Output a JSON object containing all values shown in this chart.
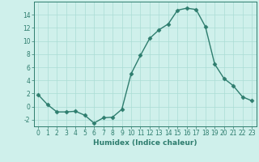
{
  "x": [
    0,
    1,
    2,
    3,
    4,
    5,
    6,
    7,
    8,
    9,
    10,
    11,
    12,
    13,
    14,
    15,
    16,
    17,
    18,
    19,
    20,
    21,
    22,
    23
  ],
  "y": [
    1.8,
    0.3,
    -0.8,
    -0.8,
    -0.7,
    -1.3,
    -2.5,
    -1.7,
    -1.6,
    -0.4,
    5.0,
    7.8,
    10.4,
    11.7,
    12.6,
    14.7,
    15.0,
    14.8,
    12.2,
    6.5,
    4.3,
    3.2,
    1.5,
    0.9
  ],
  "line_color": "#2e7d6e",
  "marker": "D",
  "markersize": 2.5,
  "linewidth": 1.0,
  "bg_color": "#cff0eb",
  "grid_color": "#aaddd5",
  "xlabel": "Humidex (Indice chaleur)",
  "ylim": [
    -3,
    16
  ],
  "xlim": [
    -0.5,
    23.5
  ],
  "yticks": [
    -2,
    0,
    2,
    4,
    6,
    8,
    10,
    12,
    14
  ],
  "xticks": [
    0,
    1,
    2,
    3,
    4,
    5,
    6,
    7,
    8,
    9,
    10,
    11,
    12,
    13,
    14,
    15,
    16,
    17,
    18,
    19,
    20,
    21,
    22,
    23
  ],
  "xlabel_fontsize": 6.5,
  "tick_fontsize": 5.5
}
